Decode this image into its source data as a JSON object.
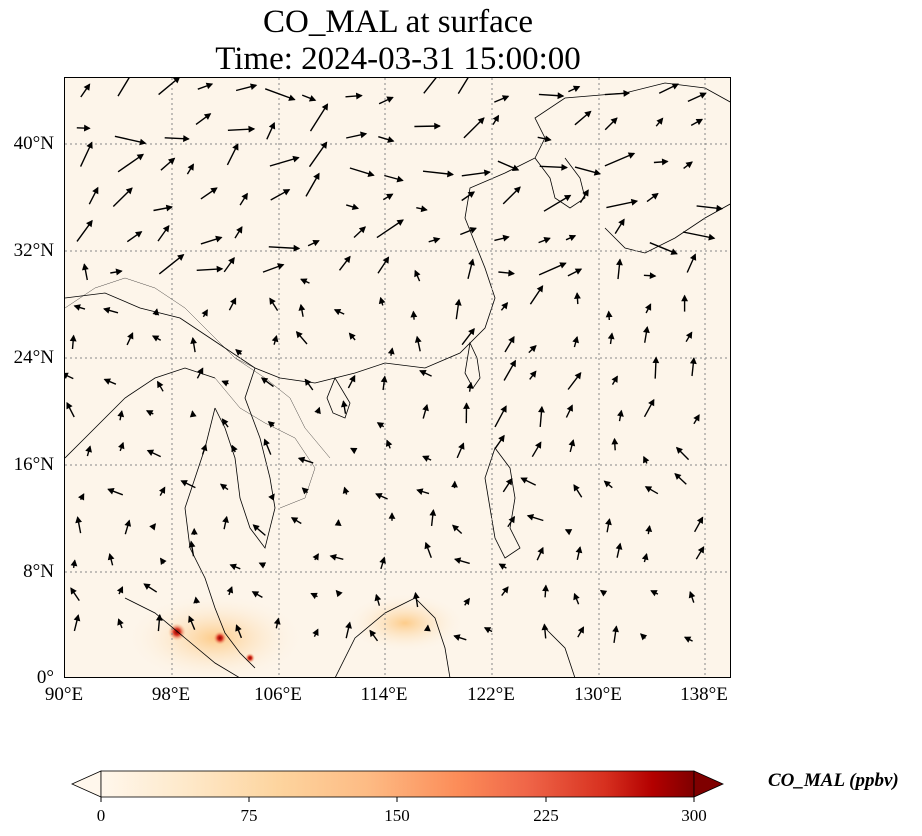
{
  "title": {
    "line1": "CO_MAL at surface",
    "line2": "Time: 2024-03-31 15:00:00"
  },
  "map": {
    "extent": {
      "lon_min": 90,
      "lon_max": 140,
      "lat_min": 0,
      "lat_max": 45
    },
    "projection": "PlateCarree",
    "grid": "dotted gray",
    "lat_ticks": [
      "40°N",
      "32°N",
      "24°N",
      "16°N",
      "8°N",
      "0°"
    ],
    "lon_ticks": [
      "90°E",
      "98°E",
      "106°E",
      "114°E",
      "122°E",
      "130°E",
      "138°E"
    ],
    "field": "CO_MAL surface concentration, mostly near 0 ppbv; hot spots in Sumatra / Malay Peninsula and Borneo",
    "overlay": "wind vectors (black arrows)",
    "colors": {
      "background": "#fdf5ea",
      "hotspot": "#b30000",
      "arrow": "#000000"
    }
  },
  "colorbar": {
    "label": "CO_MAL (ppbv)",
    "ticks": [
      "0",
      "75",
      "150",
      "225",
      "300"
    ],
    "min": 0,
    "max": 300,
    "colormap": "OrRd",
    "extend": "both"
  }
}
